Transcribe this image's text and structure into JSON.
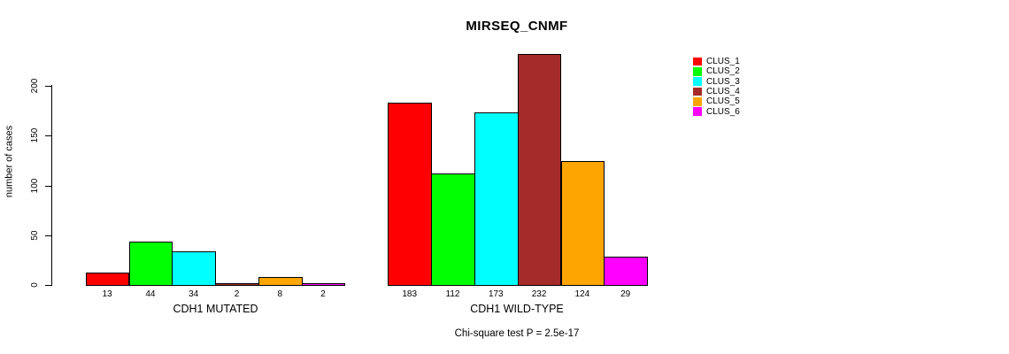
{
  "chart_data": {
    "type": "bar",
    "title": "MIRSEQ_CNMF",
    "ylabel": "number of cases",
    "xlabel": "",
    "footer": "Chi-square test P = 2.5e-17",
    "yticks": [
      0,
      50,
      100,
      150,
      200
    ],
    "ylim": [
      0,
      232
    ],
    "grid": false,
    "legend_position": "right",
    "groups": [
      {
        "label": "CDH1 MUTATED",
        "values": [
          13,
          44,
          34,
          2,
          8,
          2
        ]
      },
      {
        "label": "CDH1 WILD-TYPE",
        "values": [
          183,
          112,
          173,
          232,
          124,
          29
        ]
      }
    ],
    "series": [
      {
        "name": "CLUS_1",
        "color": "#ff0000"
      },
      {
        "name": "CLUS_2",
        "color": "#00ff00"
      },
      {
        "name": "CLUS_3",
        "color": "#00ffff"
      },
      {
        "name": "CLUS_4",
        "color": "#a52a2a"
      },
      {
        "name": "CLUS_5",
        "color": "#ffa500"
      },
      {
        "name": "CLUS_6",
        "color": "#ff00ff"
      }
    ]
  }
}
